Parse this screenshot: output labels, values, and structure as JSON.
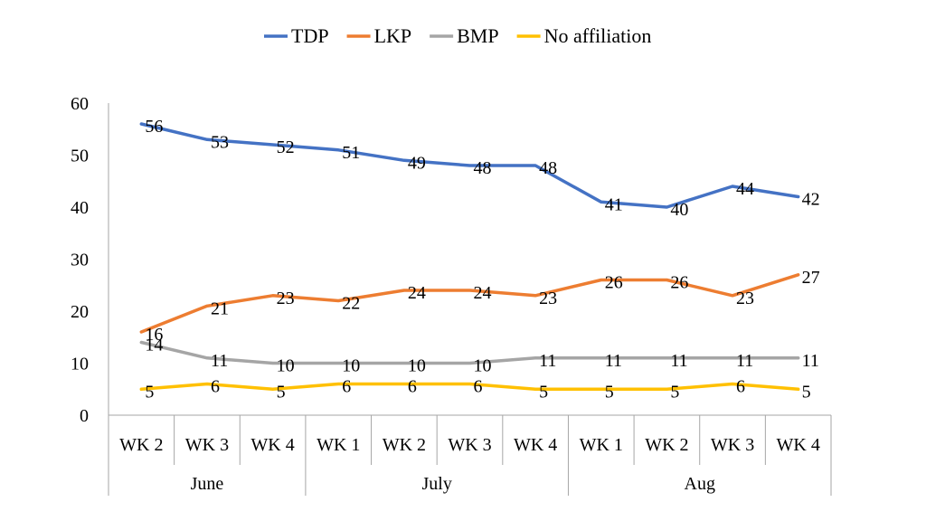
{
  "chart_data": {
    "type": "line",
    "categories": [
      "WK 2",
      "WK 3",
      "WK 4",
      "WK 1",
      "WK 2",
      "WK 3",
      "WK 4",
      "WK 1",
      "WK 2",
      "WK 3",
      "WK 4"
    ],
    "groups": [
      {
        "label": "June",
        "count": 3
      },
      {
        "label": "July",
        "count": 4
      },
      {
        "label": "Aug",
        "count": 4
      }
    ],
    "series": [
      {
        "name": "TDP",
        "color": "#4472C4",
        "values": [
          56,
          53,
          52,
          51,
          49,
          48,
          48,
          41,
          40,
          44,
          42
        ]
      },
      {
        "name": "LKP",
        "color": "#ED7D31",
        "values": [
          16,
          21,
          23,
          22,
          24,
          24,
          23,
          26,
          26,
          23,
          27
        ]
      },
      {
        "name": "BMP",
        "color": "#A5A5A5",
        "values": [
          14,
          11,
          10,
          10,
          10,
          10,
          11,
          11,
          11,
          11,
          11
        ]
      },
      {
        "name": "No affiliation",
        "color": "#FFC000",
        "values": [
          5,
          6,
          5,
          6,
          6,
          6,
          5,
          5,
          5,
          6,
          5
        ]
      }
    ],
    "ylim": [
      0,
      60
    ],
    "yticks": [
      0,
      10,
      20,
      30,
      40,
      50,
      60
    ],
    "title": "",
    "xlabel": "",
    "ylabel": "",
    "legend_position": "top",
    "grid": false,
    "data_labels": true
  }
}
